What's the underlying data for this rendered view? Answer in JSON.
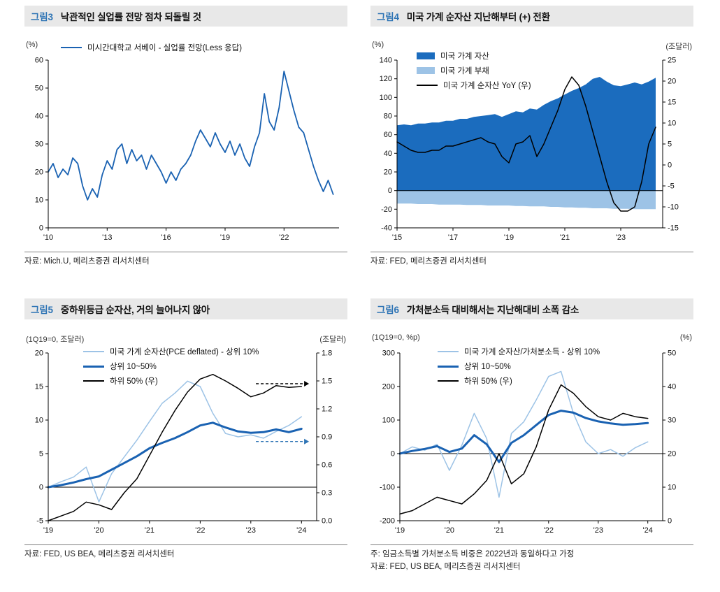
{
  "chart_data": [
    {
      "type": "line",
      "tag": "그림3",
      "title": "낙관적인 실업률 전망 점차 되돌릴 것",
      "unit_left": "(%)",
      "unit_right": "",
      "source": "자료: Mich.U, 메리츠증권 리서치센터",
      "legend": [
        {
          "label": "미시간대학교 서베이 - 실업률 전망(Less 응답)",
          "color": "#1a62b2",
          "swatch": "line"
        }
      ],
      "legend_pos": {
        "x": 52,
        "y": 2,
        "stack": false
      },
      "ml": 34,
      "x": {
        "min": 2010,
        "max": 2024.8,
        "ticks": [
          2010,
          2013,
          2016,
          2019,
          2022
        ],
        "labels": [
          "'10",
          "'13",
          "'16",
          "'19",
          "'22"
        ]
      },
      "left": {
        "min": 0,
        "max": 60,
        "ticks": [
          0,
          10,
          20,
          30,
          40,
          50,
          60
        ],
        "labels": [
          "0",
          "10",
          "20",
          "30",
          "40",
          "50",
          "60"
        ]
      },
      "zero_line": false,
      "series": [
        {
          "name": "미시간대학교 서베이 - 실업률 전망(Less 응답)",
          "axis": "left",
          "type": "line",
          "color": "#1a62b2",
          "width": 1.8,
          "x_start": 2010,
          "x_step": 0.25,
          "values": [
            20,
            23,
            18,
            21,
            19,
            25,
            23,
            15,
            10,
            14,
            11,
            19,
            24,
            21,
            28,
            30,
            23,
            28,
            24,
            26,
            21,
            26,
            23,
            20,
            16,
            20,
            17,
            21,
            23,
            26,
            31,
            35,
            32,
            29,
            34,
            30,
            27,
            31,
            26,
            30,
            25,
            22,
            29,
            34,
            48,
            38,
            35,
            43,
            56,
            49,
            42,
            36,
            34,
            28,
            22,
            17,
            13,
            17,
            12
          ]
        }
      ]
    },
    {
      "type": "area+line",
      "tag": "그림4",
      "title": "미국 가계 순자산 지난해부터 (+) 전환",
      "unit_left": "(%)",
      "unit_right": "(조달러)",
      "source": "자료: FED, 메리츠증권 리서치센터",
      "legend": [
        {
          "label": "미국 가계 자산",
          "color": "#1b6cbe",
          "swatch": "box"
        },
        {
          "label": "미국 가계 부채",
          "color": "#9dc3e6",
          "swatch": "box"
        },
        {
          "label": "미국 가계 순자산 YoY (우)",
          "color": "#000000",
          "swatch": "line"
        }
      ],
      "legend_pos": {
        "x": 66,
        "y": 14,
        "stack": true
      },
      "ml": 38,
      "x": {
        "min": 2015,
        "max": 2024.5,
        "ticks": [
          2015,
          2017,
          2019,
          2021,
          2023
        ],
        "labels": [
          "'15",
          "'17",
          "'19",
          "'21",
          "'23"
        ]
      },
      "left": {
        "min": -40,
        "max": 140,
        "ticks": [
          -40,
          -20,
          0,
          20,
          40,
          60,
          80,
          100,
          120,
          140
        ],
        "labels": [
          "-40",
          "-20",
          "0",
          "20",
          "40",
          "60",
          "80",
          "100",
          "120",
          "140"
        ]
      },
      "right": {
        "min": -15,
        "max": 25,
        "ticks": [
          -15,
          -10,
          -5,
          0,
          5,
          10,
          15,
          20,
          25
        ],
        "labels": [
          "-15",
          "-10",
          "-5",
          "0",
          "5",
          "10",
          "15",
          "20",
          "25"
        ]
      },
      "zero_line": true,
      "series": [
        {
          "name": "미국 가계 자산",
          "axis": "left",
          "type": "area",
          "color": "#1b6cbe",
          "x_start": 2015,
          "x_step": 0.25,
          "values": [
            70,
            71,
            70,
            72,
            72,
            73,
            73,
            75,
            75,
            77,
            77,
            79,
            80,
            81,
            82,
            79,
            82,
            85,
            84,
            88,
            87,
            92,
            96,
            99,
            103,
            107,
            110,
            114,
            120,
            122,
            117,
            113,
            112,
            114,
            116,
            114,
            117,
            121
          ]
        },
        {
          "name": "미국 가계 부채",
          "axis": "left",
          "type": "area",
          "color": "#9dc3e6",
          "x_start": 2015,
          "x_step": 0.25,
          "values": [
            -14,
            -14,
            -14,
            -14.5,
            -14.5,
            -14.5,
            -15,
            -15,
            -15,
            -15,
            -15.5,
            -15.5,
            -15.5,
            -16,
            -16,
            -16,
            -16,
            -16.5,
            -16.5,
            -17,
            -17,
            -17,
            -17.5,
            -17.5,
            -18,
            -18,
            -18.5,
            -18.5,
            -19,
            -19,
            -19,
            -19.5,
            -19.5,
            -19.5,
            -20,
            -20,
            -20,
            -20
          ]
        },
        {
          "name": "미국 가계 순자산 YoY (우)",
          "axis": "right",
          "type": "line",
          "color": "#000000",
          "width": 1.5,
          "x_start": 2015,
          "x_step": 0.25,
          "values": [
            5.5,
            4.5,
            3.5,
            3,
            3,
            3.5,
            3.5,
            4.5,
            4.5,
            5,
            5.5,
            6,
            6.5,
            5.5,
            5,
            2,
            0.5,
            5,
            5.5,
            7,
            2,
            5,
            9,
            13,
            18,
            21,
            19,
            14,
            8,
            2,
            -4,
            -9,
            -11,
            -11,
            -10,
            -4,
            5,
            9
          ]
        }
      ]
    },
    {
      "type": "line",
      "tag": "그림5",
      "title": "중하위등급 순자산, 거의 늘어나지 않아",
      "unit_left": "(1Q19=0, 조달러)",
      "unit_right": "(조달러)",
      "source": "자료: FED, US BEA, 메리츠증권 리서치센터",
      "legend": [
        {
          "label": "미국 가계 순자산(PCE deflated)  - 상위 10%",
          "color": "#9dc3e6",
          "swatch": "line"
        },
        {
          "label": "상위 10~50%",
          "color": "#1a62b2",
          "swatch": "thickline"
        },
        {
          "label": "하위 50% (우)",
          "color": "#000000",
          "swatch": "line"
        }
      ],
      "legend_pos": {
        "x": 84,
        "y": 18,
        "stack": true
      },
      "ml": 34,
      "x": {
        "min": 2019,
        "max": 2024.3,
        "ticks": [
          2019,
          2020,
          2021,
          2022,
          2023,
          2024
        ],
        "labels": [
          "'19",
          "'20",
          "'21",
          "'22",
          "'23",
          "'24"
        ]
      },
      "left": {
        "min": -5,
        "max": 20,
        "ticks": [
          -5,
          0,
          5,
          10,
          15,
          20
        ],
        "labels": [
          "-5",
          "0",
          "5",
          "10",
          "15",
          "20"
        ]
      },
      "right": {
        "min": 0,
        "max": 1.8,
        "ticks": [
          0,
          0.3,
          0.6,
          0.9,
          1.2,
          1.5,
          1.8
        ],
        "labels": [
          "0.0",
          "0.3",
          "0.6",
          "0.9",
          "1.2",
          "1.5",
          "1.8"
        ]
      },
      "zero_line": true,
      "annotations": [
        {
          "axis": "right",
          "y": 1.47,
          "x1": 2023.1,
          "x2": 2024.15,
          "color": "#000000"
        },
        {
          "axis": "left",
          "y": 6.8,
          "x1": 2023.1,
          "x2": 2024.15,
          "color": "#2e74b5"
        }
      ],
      "series": [
        {
          "name": "미국 가계 순자산(PCE deflated) - 상위 10%",
          "axis": "left",
          "type": "line",
          "color": "#9dc3e6",
          "width": 1.5,
          "x_start": 2019,
          "x_step": 0.25,
          "values": [
            0,
            0.8,
            1.5,
            3,
            -2.2,
            2,
            4.5,
            7,
            9.8,
            12.5,
            14,
            15.8,
            15,
            11,
            8,
            7.5,
            7.8,
            7.3,
            8.3,
            9.2,
            10.5
          ]
        },
        {
          "name": "상위 10~50%",
          "axis": "left",
          "type": "line",
          "color": "#1a62b2",
          "width": 3,
          "x_start": 2019,
          "x_step": 0.25,
          "values": [
            0,
            0.3,
            0.7,
            1.2,
            1.6,
            2.6,
            3.6,
            4.6,
            5.8,
            6.6,
            7.3,
            8.2,
            9.2,
            9.6,
            8.9,
            8.3,
            8.1,
            8.2,
            8.6,
            8.2,
            8.7
          ]
        },
        {
          "name": "하위 50% (우)",
          "axis": "right",
          "type": "line",
          "color": "#000000",
          "width": 1.5,
          "x_start": 2019,
          "x_step": 0.25,
          "values": [
            0,
            0.05,
            0.1,
            0.2,
            0.17,
            0.12,
            0.3,
            0.45,
            0.7,
            0.95,
            1.18,
            1.38,
            1.52,
            1.57,
            1.5,
            1.42,
            1.33,
            1.37,
            1.45,
            1.43,
            1.44
          ]
        }
      ]
    },
    {
      "type": "line",
      "tag": "그림6",
      "title": "가처분소득 대비해서는 지난해대비 소폭 감소",
      "unit_left": "(1Q19=0,  %p)",
      "unit_right": "(%)",
      "note": "주: 임금소득별 가처분소득 비중은 2022년과 동일하다고 가정",
      "source": "자료: FED, US BEA, 메리츠증권 리서치센터",
      "legend": [
        {
          "label": "미국 가계 순자산/가처분소득  - 상위 10%",
          "color": "#9dc3e6",
          "swatch": "line"
        },
        {
          "label": "상위 10~50%",
          "color": "#1a62b2",
          "swatch": "thickline"
        },
        {
          "label": "하위 50% (우)",
          "color": "#000000",
          "swatch": "line"
        }
      ],
      "legend_pos": {
        "x": 96,
        "y": 18,
        "stack": true
      },
      "ml": 42,
      "x": {
        "min": 2019,
        "max": 2024.3,
        "ticks": [
          2019,
          2020,
          2021,
          2022,
          2023,
          2024
        ],
        "labels": [
          "'19",
          "'20",
          "'21",
          "'22",
          "'23",
          "'24"
        ]
      },
      "left": {
        "min": -200,
        "max": 300,
        "ticks": [
          -200,
          -100,
          0,
          100,
          200,
          300
        ],
        "labels": [
          "-200",
          "-100",
          "0",
          "100",
          "200",
          "300"
        ]
      },
      "right": {
        "min": 0,
        "max": 50,
        "ticks": [
          0,
          10,
          20,
          30,
          40,
          50
        ],
        "labels": [
          "0",
          "10",
          "20",
          "30",
          "40",
          "50"
        ]
      },
      "zero_line": true,
      "series": [
        {
          "name": "미국 가계 순자산/가처분소득 - 상위 10%",
          "axis": "left",
          "type": "line",
          "color": "#9dc3e6",
          "width": 1.5,
          "x_start": 2019,
          "x_step": 0.25,
          "values": [
            0,
            20,
            10,
            28,
            -50,
            25,
            120,
            45,
            -130,
            60,
            95,
            160,
            230,
            245,
            120,
            35,
            0,
            12,
            -8,
            18,
            35
          ]
        },
        {
          "name": "상위 10~50%",
          "axis": "left",
          "type": "line",
          "color": "#1a62b2",
          "width": 3,
          "x_start": 2019,
          "x_step": 0.25,
          "values": [
            0,
            8,
            14,
            22,
            5,
            15,
            55,
            28,
            -25,
            32,
            55,
            85,
            115,
            128,
            122,
            106,
            96,
            90,
            86,
            88,
            91
          ]
        },
        {
          "name": "하위 50% (우)",
          "axis": "right",
          "type": "line",
          "color": "#000000",
          "width": 1.5,
          "x_start": 2019,
          "x_step": 0.25,
          "values": [
            2,
            3,
            5,
            7,
            6,
            5,
            8,
            12,
            20,
            11,
            14,
            22,
            33,
            40.5,
            38,
            34,
            31,
            30,
            32,
            31,
            30.5
          ]
        }
      ]
    }
  ]
}
